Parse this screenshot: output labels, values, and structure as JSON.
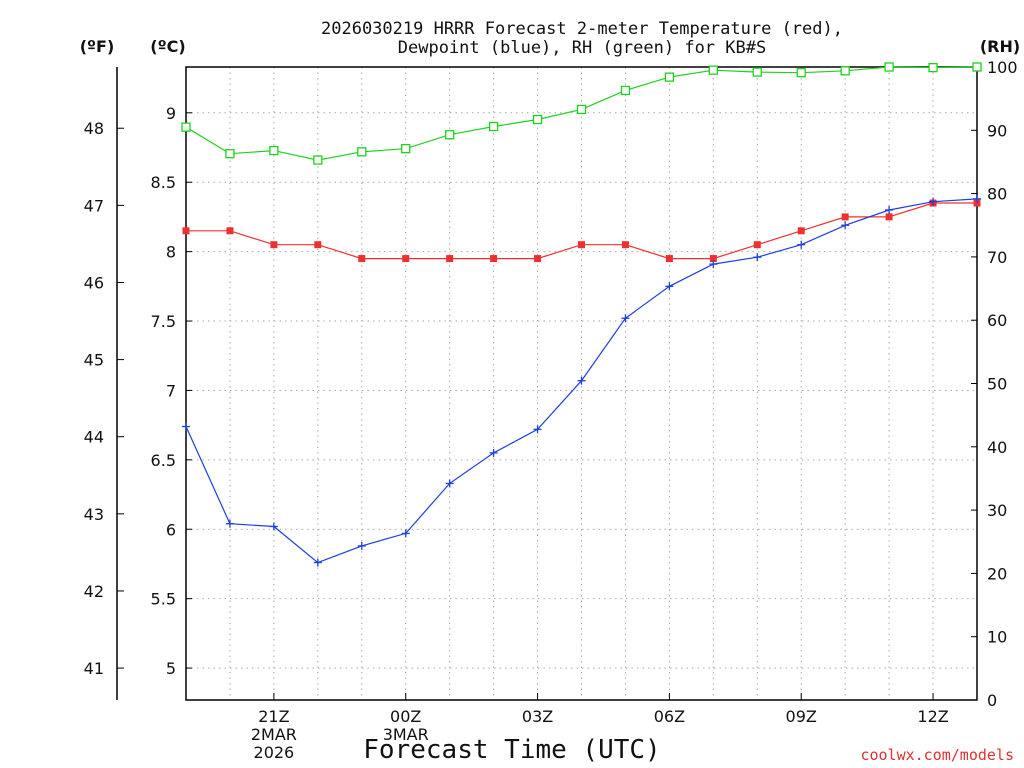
{
  "chart_data": {
    "type": "line",
    "title_line1": "2026030219 HRRR Forecast 2-meter Temperature (red),",
    "title_line2": "Dewpoint (blue), RH (green) for KB#S",
    "xlabel": "Forecast Time (UTC)",
    "credit": "coolwx.com/models",
    "units": {
      "fahrenheit": "(ºF)",
      "celsius": "(ºC)",
      "rh": "(RH)"
    },
    "x_hours": [
      19,
      20,
      21,
      22,
      23,
      24,
      25,
      26,
      27,
      28,
      29,
      30,
      31,
      32,
      33,
      34,
      35,
      36,
      37
    ],
    "x_ticks": [
      {
        "hour": 21,
        "lines": [
          "21Z",
          "2MAR",
          "2026"
        ]
      },
      {
        "hour": 24,
        "lines": [
          "00Z",
          "3MAR"
        ]
      },
      {
        "hour": 27,
        "lines": [
          "03Z"
        ]
      },
      {
        "hour": 30,
        "lines": [
          "06Z"
        ]
      },
      {
        "hour": 33,
        "lines": [
          "09Z"
        ]
      },
      {
        "hour": 36,
        "lines": [
          "12Z"
        ]
      }
    ],
    "celsius_axis": {
      "min": 4.77,
      "max": 9.33,
      "ticks": [
        "5",
        "5.5",
        "6",
        "6.5",
        "7",
        "7.5",
        "8",
        "8.5",
        "9"
      ]
    },
    "fahrenheit_axis": {
      "ticks": [
        "41",
        "42",
        "43",
        "44",
        "45",
        "46",
        "47",
        "48"
      ]
    },
    "rh_axis": {
      "min": 0,
      "max": 100,
      "ticks": [
        "0",
        "10",
        "20",
        "30",
        "40",
        "50",
        "60",
        "70",
        "80",
        "90",
        "100"
      ]
    },
    "series": [
      {
        "name": "Temperature",
        "unit": "C",
        "color": "#f03030",
        "values": [
          8.15,
          8.15,
          8.05,
          8.05,
          7.95,
          7.95,
          7.95,
          7.95,
          7.95,
          8.05,
          8.05,
          7.95,
          7.95,
          8.05,
          8.15,
          8.25,
          8.25,
          8.35,
          8.35
        ]
      },
      {
        "name": "Dewpoint",
        "unit": "C",
        "color": "#1c3ee0",
        "values": [
          6.74,
          6.04,
          6.02,
          5.76,
          5.88,
          5.97,
          6.33,
          6.55,
          6.72,
          7.07,
          7.52,
          7.75,
          7.91,
          7.96,
          8.05,
          8.19,
          8.3,
          8.36,
          8.38
        ]
      },
      {
        "name": "RH",
        "unit": "%",
        "color": "#20d020",
        "values": [
          90.5,
          86.3,
          86.8,
          85.3,
          86.6,
          87.1,
          89.3,
          90.6,
          91.7,
          93.3,
          96.3,
          98.4,
          99.5,
          99.2,
          99.1,
          99.4,
          100.0,
          99.9,
          100.0
        ]
      }
    ]
  }
}
